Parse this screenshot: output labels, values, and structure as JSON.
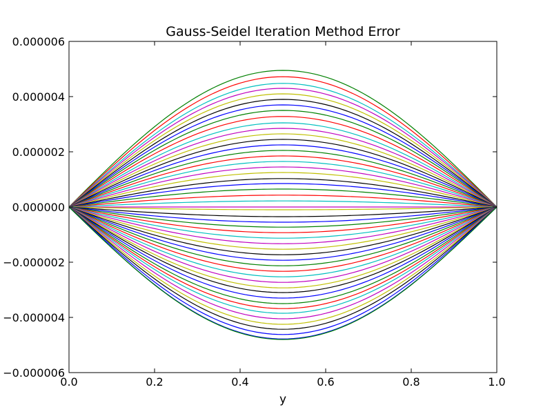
{
  "chart_data": {
    "type": "line",
    "title": "Gauss-Seidel Iteration Method Error",
    "xlabel": "y",
    "ylabel": "",
    "xlim": [
      0.0,
      1.0
    ],
    "ylim": [
      -6e-06,
      6e-06
    ],
    "x_ticks": [
      "0.0",
      "0.2",
      "0.4",
      "0.6",
      "0.8",
      "1.0"
    ],
    "y_ticks": [
      "−0.000006",
      "−0.000004",
      "−0.000002",
      "0.000000",
      "0.000002",
      "0.000004",
      "0.000006"
    ],
    "grid": false,
    "legend": "none",
    "series_shape": "sine",
    "series_colors": [
      "#0000ff",
      "#008000",
      "#ff0000",
      "#00bfbf",
      "#bf00bf",
      "#bfbf00",
      "#000000"
    ],
    "series": [
      {
        "peak": 4.95e-06,
        "color": "#008000"
      },
      {
        "peak": 4.72e-06,
        "color": "#ff0000"
      },
      {
        "peak": 4.48e-06,
        "color": "#00bfbf"
      },
      {
        "peak": 4.3e-06,
        "color": "#bf00bf"
      },
      {
        "peak": 4.1e-06,
        "color": "#bfbf00"
      },
      {
        "peak": 3.9e-06,
        "color": "#000000"
      },
      {
        "peak": 3.7e-06,
        "color": "#0000ff"
      },
      {
        "peak": 3.5e-06,
        "color": "#008000"
      },
      {
        "peak": 3.28e-06,
        "color": "#ff0000"
      },
      {
        "peak": 3.05e-06,
        "color": "#00bfbf"
      },
      {
        "peak": 2.85e-06,
        "color": "#bf00bf"
      },
      {
        "peak": 2.65e-06,
        "color": "#bfbf00"
      },
      {
        "peak": 2.45e-06,
        "color": "#000000"
      },
      {
        "peak": 2.25e-06,
        "color": "#0000ff"
      },
      {
        "peak": 2.05e-06,
        "color": "#008000"
      },
      {
        "peak": 1.85e-06,
        "color": "#ff0000"
      },
      {
        "peak": 1.65e-06,
        "color": "#00bfbf"
      },
      {
        "peak": 1.45e-06,
        "color": "#bf00bf"
      },
      {
        "peak": 1.25e-06,
        "color": "#bfbf00"
      },
      {
        "peak": 1.03e-06,
        "color": "#000000"
      },
      {
        "peak": 8.5e-07,
        "color": "#0000ff"
      },
      {
        "peak": 6.5e-07,
        "color": "#008000"
      },
      {
        "peak": 4.3e-07,
        "color": "#ff0000"
      },
      {
        "peak": 2.2e-07,
        "color": "#00bfbf"
      },
      {
        "peak": 0.0,
        "color": "#bf00bf"
      },
      {
        "peak": -1e-07,
        "color": "#bfbf00"
      },
      {
        "peak": -3.5e-07,
        "color": "#000000"
      },
      {
        "peak": -5.5e-07,
        "color": "#0000ff"
      },
      {
        "peak": -7.3e-07,
        "color": "#008000"
      },
      {
        "peak": -9.3e-07,
        "color": "#ff0000"
      },
      {
        "peak": -1.13e-06,
        "color": "#00bfbf"
      },
      {
        "peak": -1.33e-06,
        "color": "#bf00bf"
      },
      {
        "peak": -1.53e-06,
        "color": "#bfbf00"
      },
      {
        "peak": -1.73e-06,
        "color": "#000000"
      },
      {
        "peak": -1.93e-06,
        "color": "#0000ff"
      },
      {
        "peak": -2.13e-06,
        "color": "#008000"
      },
      {
        "peak": -2.33e-06,
        "color": "#ff0000"
      },
      {
        "peak": -2.53e-06,
        "color": "#00bfbf"
      },
      {
        "peak": -2.73e-06,
        "color": "#bf00bf"
      },
      {
        "peak": -2.93e-06,
        "color": "#bfbf00"
      },
      {
        "peak": -3.1e-06,
        "color": "#000000"
      },
      {
        "peak": -3.3e-06,
        "color": "#0000ff"
      },
      {
        "peak": -3.5e-06,
        "color": "#008000"
      },
      {
        "peak": -3.68e-06,
        "color": "#ff0000"
      },
      {
        "peak": -3.85e-06,
        "color": "#00bfbf"
      },
      {
        "peak": -4.05e-06,
        "color": "#bf00bf"
      },
      {
        "peak": -4.25e-06,
        "color": "#bfbf00"
      },
      {
        "peak": -4.43e-06,
        "color": "#000000"
      },
      {
        "peak": -4.62e-06,
        "color": "#0000ff"
      },
      {
        "peak": -4.78e-06,
        "color": "#0000ff"
      },
      {
        "peak": -4.8e-06,
        "color": "#008000"
      }
    ]
  }
}
